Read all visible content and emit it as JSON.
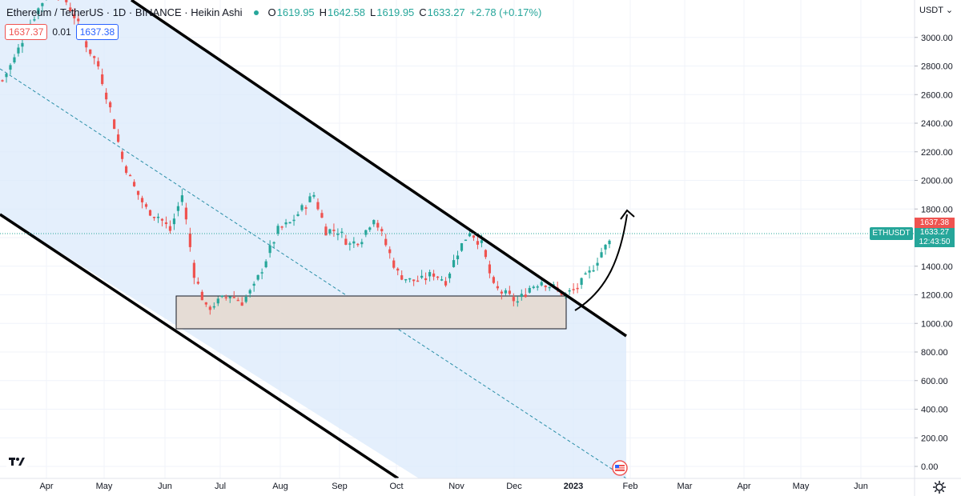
{
  "header": {
    "title": "Ethereum / TetherUS · 1D · BINANCE · Heikin Ashi",
    "ohlc": [
      {
        "k": "O",
        "v": "1619.95"
      },
      {
        "k": "H",
        "v": "1642.58"
      },
      {
        "k": "L",
        "v": "1619.95"
      },
      {
        "k": "C",
        "v": "1633.27"
      }
    ],
    "change": "+2.78 (+0.17%)",
    "sell_price": "1637.37",
    "spread": "0.01",
    "buy_price": "1637.38",
    "currency": "USDT"
  },
  "badges": {
    "ticker": "ETHUSDT",
    "ask": "1637.38",
    "last": "1633.27",
    "countdown": "12:43:50"
  },
  "colors": {
    "up": "#26a69a",
    "down": "#ef5350",
    "channel_fill": "#dbeafb",
    "zone_fill": "#e5dcd5",
    "midline": "#2a8fa8"
  },
  "icons": [
    "tradingview-logo-icon",
    "us-flag-icon",
    "settings-gear-icon"
  ],
  "chart_data": {
    "type": "candlestick",
    "style": "Heikin Ashi",
    "symbol": "ETHUSDT",
    "interval": "1D",
    "x_labels": [
      "Apr",
      "May",
      "Jun",
      "Jul",
      "Aug",
      "Sep",
      "Oct",
      "Nov",
      "Dec",
      "2023",
      "Feb",
      "Mar",
      "Apr",
      "May",
      "Jun"
    ],
    "y_ticks": [
      0,
      200,
      400,
      600,
      800,
      1000,
      1200,
      1400,
      1600,
      1800,
      2000,
      2200,
      2400,
      2600,
      2800,
      3000
    ],
    "y_tick_labels": [
      "0.00",
      "200.00",
      "400.00",
      "600.00",
      "800.00",
      "1000.00",
      "1200.00",
      "1400.00",
      "1600.00",
      "1800.00",
      "2000.00",
      "2200.00",
      "2400.00",
      "2600.00",
      "2800.00",
      "3000.00"
    ],
    "ylim": [
      -50,
      3250
    ],
    "closes": [
      2700,
      2850,
      3050,
      3200,
      3350,
      3300,
      3150,
      2950,
      2800,
      2500,
      2150,
      1950,
      1800,
      1750,
      1650,
      1900,
      1350,
      1100,
      1150,
      1200,
      1150,
      1250,
      1450,
      1650,
      1700,
      1800,
      1900,
      1650,
      1650,
      1550,
      1600,
      1750,
      1550,
      1350,
      1300,
      1300,
      1350,
      1300,
      1500,
      1650,
      1550,
      1250,
      1200,
      1150,
      1250,
      1300,
      1250,
      1200,
      1250,
      1350,
      1500,
      1600
    ],
    "zone": {
      "from_price": 960,
      "to_price": 1200
    },
    "current_price": 1633.27,
    "ask_price": 1637.38
  }
}
